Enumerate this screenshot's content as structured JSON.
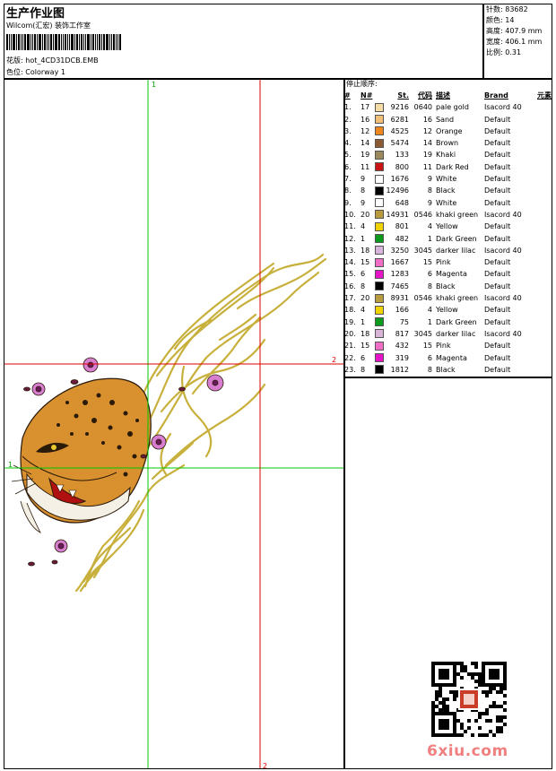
{
  "header": {
    "title": "生产作业图",
    "company": "Wilcom(汇宏) 装饰工作室",
    "pattern_label": "花版:",
    "pattern_file": "hot_4CD31DCB.EMB",
    "colorway_label": "色位:",
    "colorway": "Colorway 1"
  },
  "stats": [
    {
      "label": "针数",
      "value": "83682"
    },
    {
      "label": "颜色",
      "value": "14"
    },
    {
      "label": "高度",
      "value": "407.9 mm"
    },
    {
      "label": "宽度",
      "value": "406.1 mm"
    },
    {
      "label": "比例",
      "value": "0.31"
    }
  ],
  "thread_list": {
    "title": "停止顺序:",
    "headers": {
      "idx": "#",
      "n": "N#",
      "st": "St.",
      "code": "代码",
      "desc": "描述",
      "brand": "Brand",
      "elem": "元素"
    },
    "rows": [
      {
        "idx": "1.",
        "n": "17",
        "color": "#F5DCA6",
        "st": "9216",
        "code": "0640",
        "desc": "pale gold",
        "brand": "Isacord 40"
      },
      {
        "idx": "2.",
        "n": "16",
        "color": "#F0C078",
        "st": "6281",
        "code": "16",
        "desc": "Sand",
        "brand": "Default"
      },
      {
        "idx": "3.",
        "n": "12",
        "color": "#F0861E",
        "st": "4525",
        "code": "12",
        "desc": "Orange",
        "brand": "Default"
      },
      {
        "idx": "4.",
        "n": "14",
        "color": "#8C5A32",
        "st": "5474",
        "code": "14",
        "desc": "Brown",
        "brand": "Default"
      },
      {
        "idx": "5.",
        "n": "19",
        "color": "#9C8A5C",
        "st": "133",
        "code": "19",
        "desc": "Khaki",
        "brand": "Default"
      },
      {
        "idx": "6.",
        "n": "11",
        "color": "#C81414",
        "st": "800",
        "code": "11",
        "desc": "Dark Red",
        "brand": "Default"
      },
      {
        "idx": "7.",
        "n": "9",
        "color": "#FFFFFF",
        "st": "1676",
        "code": "9",
        "desc": "White",
        "brand": "Default"
      },
      {
        "idx": "8.",
        "n": "8",
        "color": "#000000",
        "st": "12496",
        "code": "8",
        "desc": "Black",
        "brand": "Default"
      },
      {
        "idx": "9.",
        "n": "9",
        "color": "#FFFFFF",
        "st": "648",
        "code": "9",
        "desc": "White",
        "brand": "Default"
      },
      {
        "idx": "10.",
        "n": "20",
        "color": "#B89B3C",
        "st": "14931",
        "code": "0546",
        "desc": "khaki green",
        "brand": "Isacord 40"
      },
      {
        "idx": "11.",
        "n": "4",
        "color": "#F0D200",
        "st": "801",
        "code": "4",
        "desc": "Yellow",
        "brand": "Default"
      },
      {
        "idx": "12.",
        "n": "1",
        "color": "#0A9A1E",
        "st": "482",
        "code": "1",
        "desc": "Dark Green",
        "brand": "Default"
      },
      {
        "idx": "13.",
        "n": "18",
        "color": "#D8B4D8",
        "st": "3250",
        "code": "3045",
        "desc": "darker lilac",
        "brand": "Isacord 40"
      },
      {
        "idx": "14.",
        "n": "15",
        "color": "#F06EC8",
        "st": "1667",
        "code": "15",
        "desc": "Pink",
        "brand": "Default"
      },
      {
        "idx": "15.",
        "n": "6",
        "color": "#E614C8",
        "st": "1283",
        "code": "6",
        "desc": "Magenta",
        "brand": "Default"
      },
      {
        "idx": "16.",
        "n": "8",
        "color": "#000000",
        "st": "7465",
        "code": "8",
        "desc": "Black",
        "brand": "Default"
      },
      {
        "idx": "17.",
        "n": "20",
        "color": "#B89B3C",
        "st": "8931",
        "code": "0546",
        "desc": "khaki green",
        "brand": "Isacord 40"
      },
      {
        "idx": "18.",
        "n": "4",
        "color": "#F0D200",
        "st": "166",
        "code": "4",
        "desc": "Yellow",
        "brand": "Default"
      },
      {
        "idx": "19.",
        "n": "1",
        "color": "#0A9A1E",
        "st": "75",
        "code": "1",
        "desc": "Dark Green",
        "brand": "Default"
      },
      {
        "idx": "20.",
        "n": "18",
        "color": "#D8B4D8",
        "st": "817",
        "code": "3045",
        "desc": "darker lilac",
        "brand": "Isacord 40"
      },
      {
        "idx": "21.",
        "n": "15",
        "color": "#F06EC8",
        "st": "432",
        "code": "15",
        "desc": "Pink",
        "brand": "Default"
      },
      {
        "idx": "22.",
        "n": "6",
        "color": "#E614C8",
        "st": "319",
        "code": "6",
        "desc": "Magenta",
        "brand": "Default"
      },
      {
        "idx": "23.",
        "n": "8",
        "color": "#000000",
        "st": "1812",
        "code": "8",
        "desc": "Black",
        "brand": "Default"
      }
    ]
  },
  "design": {
    "axis_markers": {
      "top": "1",
      "left": "1",
      "right": "2",
      "bottom": "2"
    },
    "colors": {
      "green_axis": "#00C800",
      "red_axis": "#E00000",
      "flame": "#C8B03C"
    }
  },
  "watermark": {
    "site": "6xiu.com"
  }
}
